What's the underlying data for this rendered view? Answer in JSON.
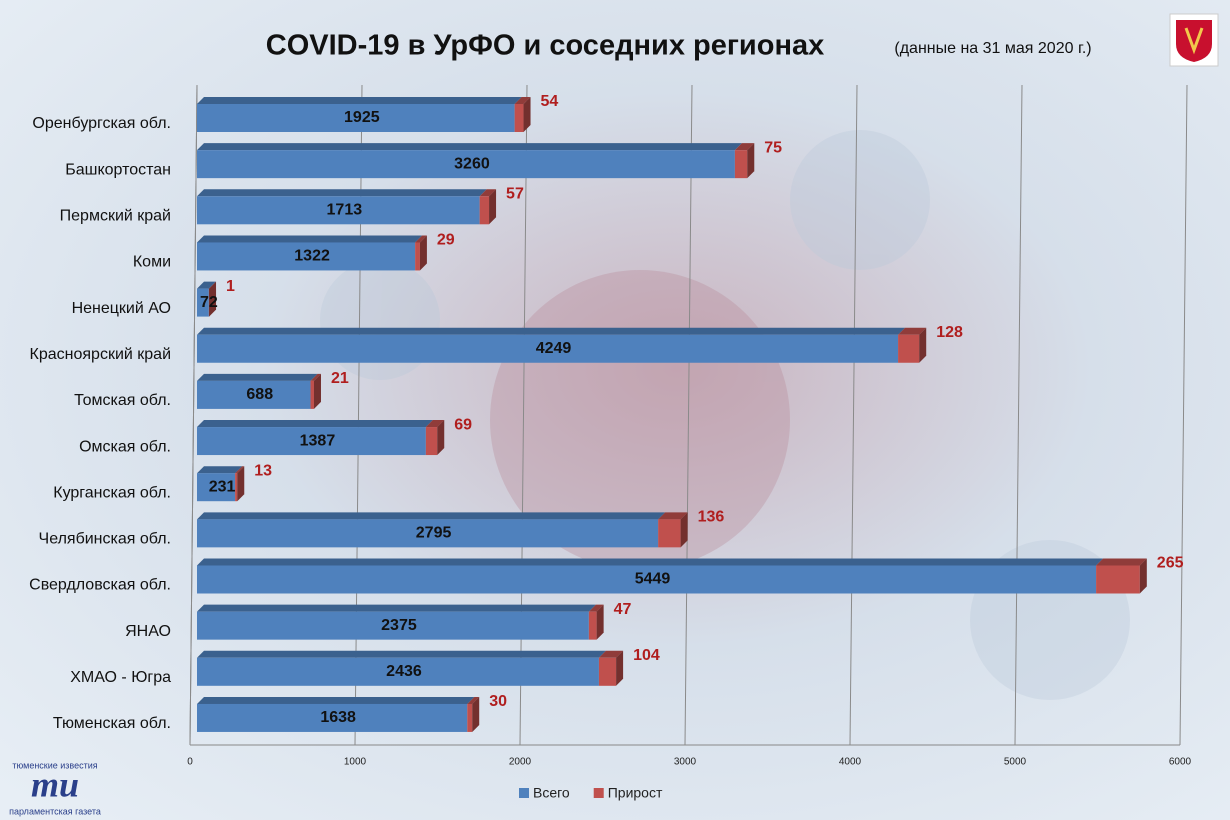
{
  "chart_data": {
    "type": "bar",
    "title": "COVID-19 в УрФО и соседних регионах",
    "subtitle": "(данные  на 31 мая 2020 г.)",
    "categories": [
      "Оренбургская обл.",
      "Башкортостан",
      "Пермский край",
      "Коми",
      "Ненецкий АО",
      "Красноярский край",
      "Томская обл.",
      "Омская обл.",
      "Курганская обл.",
      "Челябинская обл.",
      "Свердловская обл.",
      "ЯНАО",
      "ХМАО - Югра",
      "Тюменская обл."
    ],
    "series": [
      {
        "name": "Всего",
        "color": "#4f81bd",
        "values": [
          1925,
          3260,
          1713,
          1322,
          72,
          4249,
          688,
          1387,
          231,
          2795,
          5449,
          2375,
          2436,
          1638
        ]
      },
      {
        "name": "Прирост",
        "color": "#c0504d",
        "values": [
          54,
          75,
          57,
          29,
          1,
          128,
          21,
          69,
          13,
          136,
          265,
          47,
          104,
          30
        ]
      }
    ],
    "stacked": true,
    "xlim": [
      0,
      6000
    ],
    "xticks": [
      0,
      1000,
      2000,
      3000,
      4000,
      5000,
      6000
    ],
    "grid": true,
    "legend": "bottom"
  },
  "logo": {
    "top": "тюменские известия",
    "mark": "ти",
    "bottom": "парламентская газета"
  }
}
